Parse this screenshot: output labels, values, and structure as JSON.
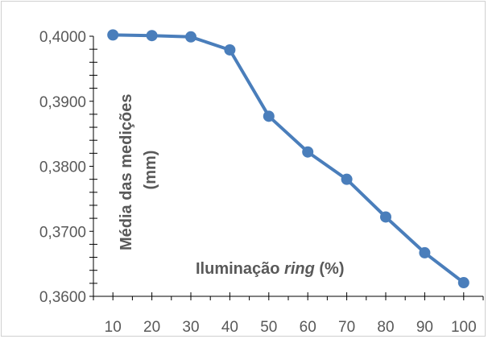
{
  "chart_data": {
    "type": "line",
    "title": "",
    "xlabel_parts": [
      "Iluminação ",
      "ring",
      " (%)"
    ],
    "ylabel_lines": [
      "Média das medições",
      "(mm)"
    ],
    "x": [
      10,
      20,
      30,
      40,
      50,
      60,
      70,
      80,
      90,
      100
    ],
    "x_tick_labels": [
      "10",
      "20",
      "30",
      "40",
      "50",
      "60",
      "70",
      "80",
      "90",
      "100"
    ],
    "y_tick_labels": [
      "0,3600",
      "0,3700",
      "0,3800",
      "0,3900",
      "0,4000"
    ],
    "ylim": [
      0.36,
      0.4
    ],
    "series": [
      {
        "values": [
          0.4002,
          0.4001,
          0.3999,
          0.3979,
          0.3877,
          0.3822,
          0.378,
          0.3722,
          0.3667,
          0.3621
        ],
        "color": "#4a7ebb"
      }
    ],
    "grid": false,
    "legend": "none"
  }
}
